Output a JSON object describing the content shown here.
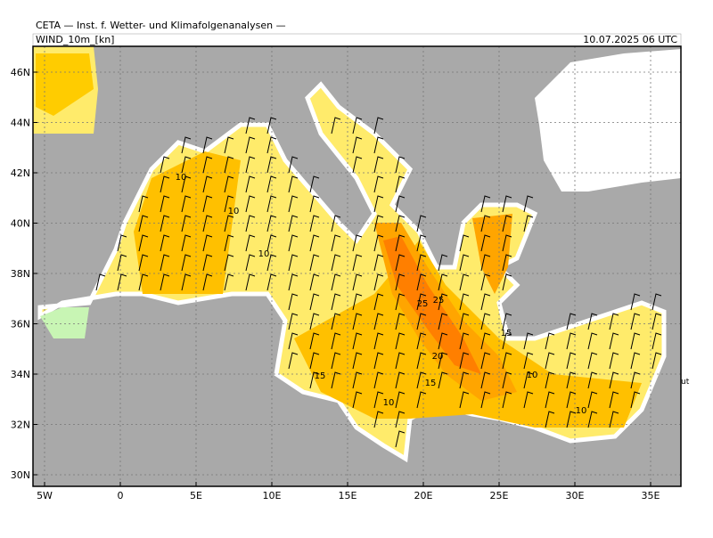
{
  "header": {
    "title": "CETA — Inst. f. Wetter- und Klimafolgenanalysen —",
    "variable": "WIND_10m_[kn]",
    "datetime": "10.07.2025 06 UTC"
  },
  "map": {
    "lat_labels": [
      "46N",
      "44N",
      "42N",
      "40N",
      "38N",
      "36N",
      "34N",
      "32N",
      "30N"
    ],
    "lon_labels": [
      "5W",
      "0",
      "5E",
      "10E",
      "15E",
      "20E",
      "25E",
      "30E",
      "35E"
    ],
    "contour_labels": [
      "10",
      "10",
      "10",
      "25",
      "25",
      "20",
      "15",
      "15",
      "15",
      "10",
      "10",
      "10"
    ],
    "edge_text": "ut"
  }
}
